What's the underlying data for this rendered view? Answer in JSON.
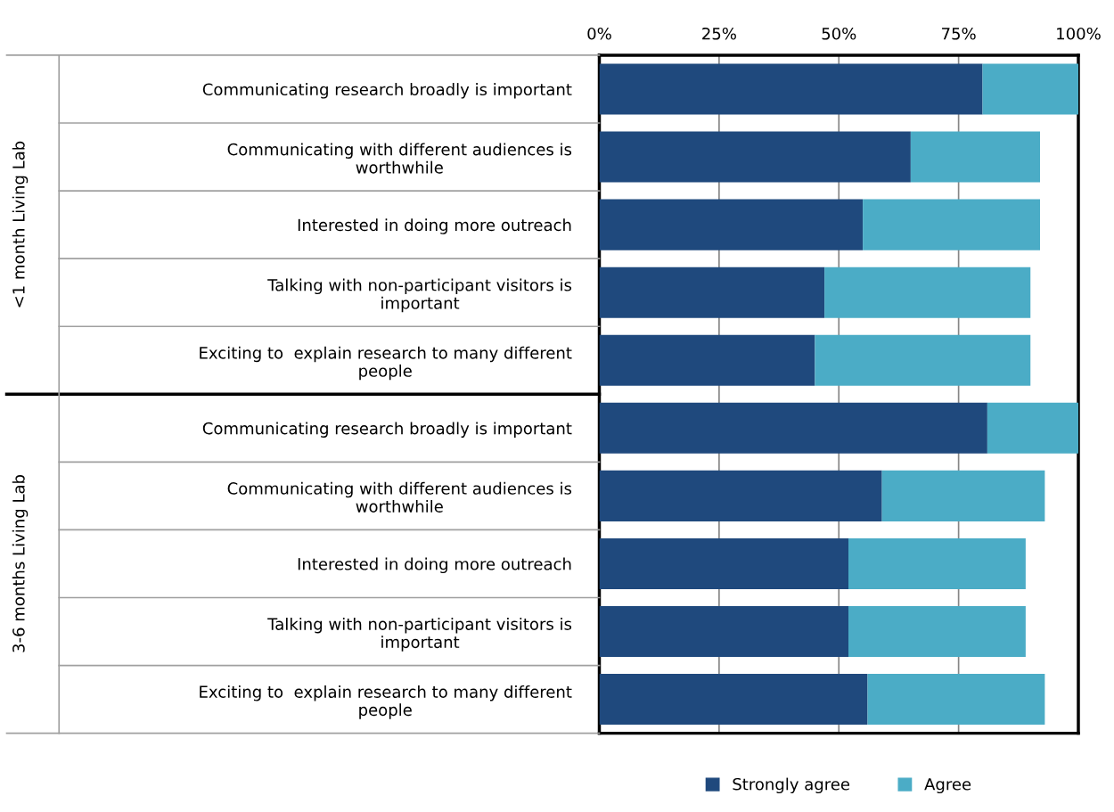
{
  "chart_data": {
    "type": "bar",
    "orientation": "horizontal",
    "stacked": true,
    "categories": [
      "Communicating research broadly is important",
      "Communicating with different audiences is worthwhile",
      "Interested in doing more outreach",
      "Talking with non-participant visitors is important",
      "Exciting to  explain research to many different people",
      "Communicating research broadly is important",
      "Communicating with different audiences is worthwhile",
      "Interested in doing more outreach",
      "Talking with non-participant visitors is important",
      "Exciting to  explain research to many different people"
    ],
    "series": [
      {
        "name": "Strongly agree",
        "color": "#1f497d",
        "values": [
          80,
          65,
          55,
          47,
          45,
          81,
          59,
          52,
          52,
          56
        ]
      },
      {
        "name": "Agree",
        "color": "#4bacc6",
        "values": [
          20,
          27,
          37,
          43,
          45,
          19,
          34,
          37,
          37,
          37
        ]
      }
    ],
    "annotations": [
      "<1 month Living Lab",
      "3-6 months Living Lab"
    ],
    "xlim": [
      0,
      100
    ],
    "xticks": [
      {
        "value": 0,
        "label": "0%"
      },
      {
        "value": 25,
        "label": "25%"
      },
      {
        "value": 50,
        "label": "50%"
      },
      {
        "value": 75,
        "label": "75%"
      },
      {
        "value": 100,
        "label": "100%"
      }
    ],
    "grid": "x",
    "legend": "bottom"
  }
}
